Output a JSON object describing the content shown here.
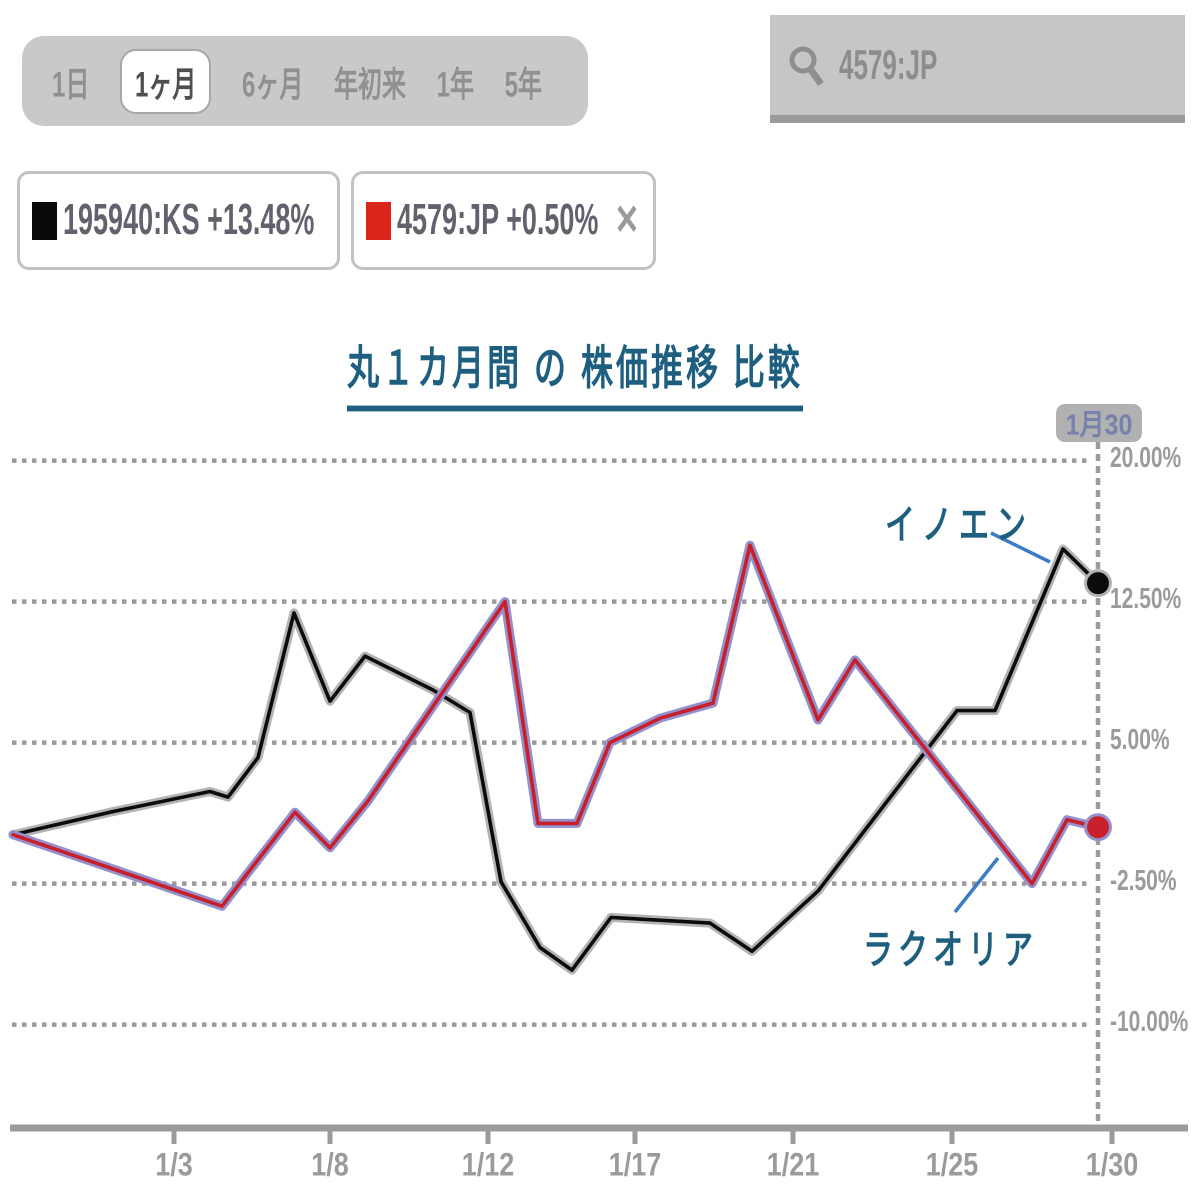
{
  "toolbar": {
    "periods": [
      {
        "label": "1日",
        "selected": false
      },
      {
        "label": "1ヶ月",
        "selected": true
      },
      {
        "label": "6ヶ月",
        "selected": false
      },
      {
        "label": "年初来",
        "selected": false
      },
      {
        "label": "1年",
        "selected": false
      },
      {
        "label": "5年",
        "selected": false
      }
    ]
  },
  "search": {
    "value": "4579:JP"
  },
  "legend": [
    {
      "ticker": "195940:KS",
      "change": "+13.48%",
      "swatch_color": "#0a0a0a",
      "closable": false
    },
    {
      "ticker": "4579:JP",
      "change": "+0.50%",
      "swatch_color": "#d9251c",
      "closable": true,
      "close_label": "✕"
    }
  ],
  "title": "丸１カ月間 の 株価推移 比較",
  "cursor_badge": "1月30",
  "annotations": [
    {
      "text": "イノエン",
      "series": "195940:KS"
    },
    {
      "text": "ラクオリア",
      "series": "4579:JP"
    }
  ],
  "chart_data": {
    "type": "line",
    "unit": "percent_change",
    "title": "丸１カ月間 の 株価推移 比較",
    "y_gridlines": [
      20.0,
      12.5,
      5.0,
      -2.5,
      -10.0
    ],
    "y_tick_labels": [
      "20.00%",
      "12.50%",
      "5.00%",
      "-2.50%",
      "-10.00%"
    ],
    "x_tick_labels": [
      "1/3",
      "1/8",
      "1/12",
      "1/17",
      "1/21",
      "1/25",
      "1/30"
    ],
    "grid": "dotted-horizontal",
    "legend_position": "top-left-boxes",
    "cursor_date": "1月30",
    "series": [
      {
        "name": "195940:KS",
        "label": "イノエン",
        "color": "#0c0c0c",
        "halo": "#b3b3b3",
        "final_change": "+13.48%",
        "points_x_pct": [
          [
            13,
            0.1
          ],
          [
            110,
            1.3
          ],
          [
            210,
            2.4
          ],
          [
            228,
            2.1
          ],
          [
            258,
            4.2
          ],
          [
            294,
            11.9
          ],
          [
            330,
            7.2
          ],
          [
            365,
            9.6
          ],
          [
            433,
            7.8
          ],
          [
            470,
            6.6
          ],
          [
            501,
            -2.4
          ],
          [
            540,
            -5.9
          ],
          [
            572,
            -7.1
          ],
          [
            611,
            -4.3
          ],
          [
            710,
            -4.6
          ],
          [
            752,
            -6.1
          ],
          [
            818,
            -2.9
          ],
          [
            957,
            6.7
          ],
          [
            995,
            6.7
          ],
          [
            1063,
            15.3
          ],
          [
            1098,
            13.48
          ]
        ]
      },
      {
        "name": "4579:JP",
        "label": "ラクオリア",
        "color": "#c7202a",
        "halo": "#9390cc",
        "final_change": "+0.50%",
        "points_x_pct": [
          [
            13,
            0.1
          ],
          [
            222,
            -3.7
          ],
          [
            295,
            1.3
          ],
          [
            330,
            -0.6
          ],
          [
            368,
            1.9
          ],
          [
            505,
            12.5
          ],
          [
            538,
            0.7
          ],
          [
            577,
            0.7
          ],
          [
            610,
            5.0
          ],
          [
            660,
            6.3
          ],
          [
            713,
            7.1
          ],
          [
            750,
            15.5
          ],
          [
            818,
            6.2
          ],
          [
            855,
            9.4
          ],
          [
            1032,
            -2.5
          ],
          [
            1067,
            0.9
          ],
          [
            1098,
            0.5
          ]
        ]
      }
    ]
  }
}
